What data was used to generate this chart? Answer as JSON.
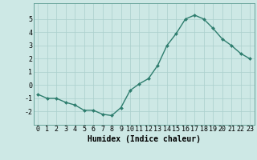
{
  "x": [
    0,
    1,
    2,
    3,
    4,
    5,
    6,
    7,
    8,
    9,
    10,
    11,
    12,
    13,
    14,
    15,
    16,
    17,
    18,
    19,
    20,
    21,
    22,
    23
  ],
  "y": [
    -0.7,
    -1.0,
    -1.0,
    -1.3,
    -1.5,
    -1.9,
    -1.9,
    -2.2,
    -2.3,
    -1.7,
    -0.4,
    0.1,
    0.5,
    1.5,
    3.0,
    3.9,
    5.0,
    5.3,
    5.0,
    4.3,
    3.5,
    3.0,
    2.4,
    2.0
  ],
  "line_color": "#2e7d6e",
  "marker": "D",
  "marker_size": 2.0,
  "bg_color": "#cde8e5",
  "grid_color": "#aacfcc",
  "xlabel": "Humidex (Indice chaleur)",
  "xlabel_fontsize": 7.0,
  "tick_fontsize": 6.0,
  "ylim": [
    -3.0,
    6.2
  ],
  "xlim": [
    -0.5,
    23.5
  ],
  "yticks": [
    -2,
    -1,
    0,
    1,
    2,
    3,
    4,
    5
  ],
  "xticks": [
    0,
    1,
    2,
    3,
    4,
    5,
    6,
    7,
    8,
    9,
    10,
    11,
    12,
    13,
    14,
    15,
    16,
    17,
    18,
    19,
    20,
    21,
    22,
    23
  ],
  "line_width": 1.0
}
